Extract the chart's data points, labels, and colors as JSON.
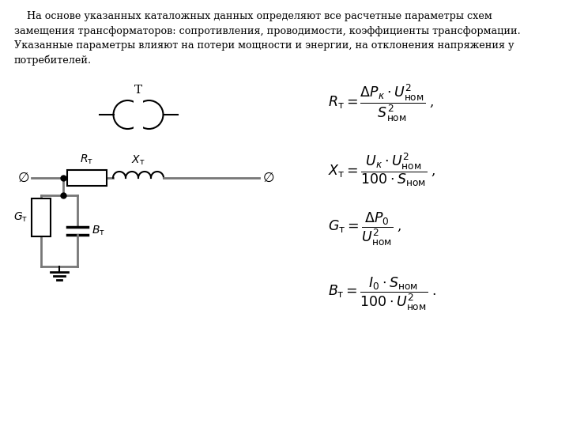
{
  "background_color": "#ffffff",
  "text_color": "#000000",
  "line_color": "#777777",
  "paragraph_text": "    На основе указанных каталожных данных определяют все расчетные параметры схем замещения трансформаторов: сопротивления, проводимости, коэффициенты трансформации.\nУказанные параметры влияют на потери мощности и энергии, на отклонения напряжения у потребителей.",
  "formula1": "$R_{\\mathrm{\\mathsf{т}}} = \\dfrac{\\Delta P_{\\kappa} \\cdot U^{2}_{\\mathrm{ном}}}{S^{2}_{\\mathrm{ном}}}$ ,",
  "formula2": "$X_{\\mathrm{\\mathsf{т}}} = \\dfrac{U_{\\kappa} \\cdot U^{2}_{\\mathrm{ном}}}{100 \\cdot S_{\\mathrm{ном}}}$ ,",
  "formula3": "$G_{\\mathrm{\\mathsf{т}}} = \\dfrac{\\Delta P_{0}}{U^{2}_{\\mathrm{ном}}}$ ,",
  "formula4": "$B_{\\mathrm{\\mathsf{т}}} = \\dfrac{I_{0} \\cdot S_{\\mathrm{ном}}}{100 \\cdot U^{2}_{\\mathrm{ном}}}$ .",
  "label_T": "T",
  "label_Rt": "$R_{\\mathrm{\\mathsf{т}}}$",
  "label_Xt": "$X_{\\mathrm{\\mathsf{т}}}$",
  "label_Gt": "$G_{\\mathrm{\\mathsf{т}}}$",
  "label_Bt": "$B_{\\mathrm{\\mathsf{т}}}$",
  "label_phi_left": "$\\varnothing$",
  "label_phi_right": "$\\varnothing$",
  "fig_width": 7.2,
  "fig_height": 5.4,
  "dpi": 100
}
